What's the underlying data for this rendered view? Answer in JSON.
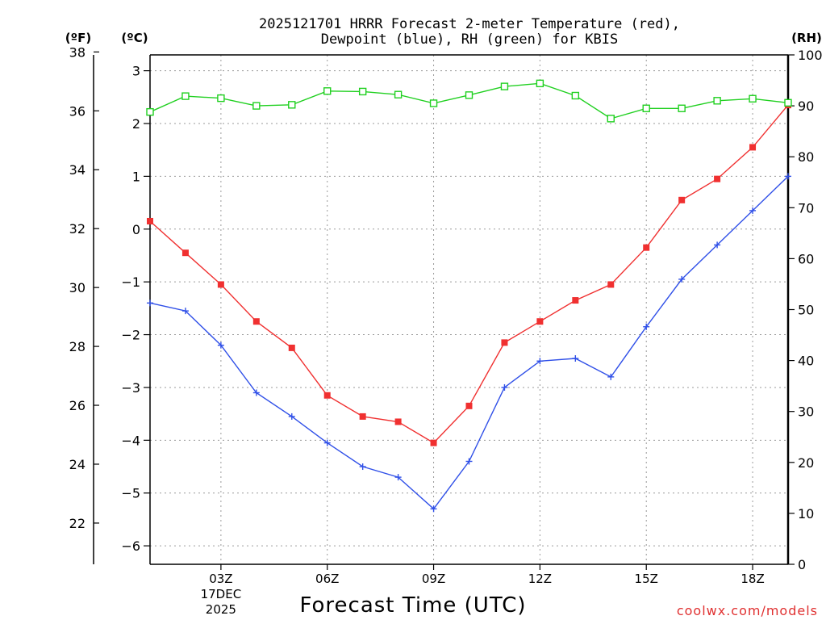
{
  "chart_data": {
    "type": "line",
    "title_line1": "2025121701 HRRR Forecast 2-meter Temperature (red),",
    "title_line2": "Dewpoint (blue), RH (green) for KBIS",
    "xlabel": "Forecast Time (UTC)",
    "credit": "coolwx.com/models",
    "unit_left_f": "(ºF)",
    "unit_left_c": "(ºC)",
    "unit_right": "(RH)",
    "x_hours": [
      1,
      2,
      3,
      4,
      5,
      6,
      7,
      8,
      9,
      10,
      11,
      12,
      13,
      14,
      15,
      16,
      17,
      18,
      19
    ],
    "xlim": [
      1,
      19
    ],
    "x_ticks": [
      {
        "hour": 3,
        "label": "03Z",
        "sub1": "17DEC",
        "sub2": "2025"
      },
      {
        "hour": 6,
        "label": "06Z"
      },
      {
        "hour": 9,
        "label": "09Z"
      },
      {
        "hour": 12,
        "label": "12Z"
      },
      {
        "hour": 15,
        "label": "15Z"
      },
      {
        "hour": 18,
        "label": "18Z"
      }
    ],
    "celsius_axis": {
      "range": [
        -6.35,
        3.3
      ],
      "ticks": [
        3,
        2,
        1,
        0,
        -1,
        -2,
        -3,
        -4,
        -5,
        -6
      ]
    },
    "fahrenheit_axis": {
      "range": [
        20.6,
        37.9
      ],
      "ticks": [
        38,
        36,
        34,
        32,
        30,
        28,
        26,
        24,
        22
      ]
    },
    "rh_axis": {
      "range": [
        0,
        100
      ],
      "ticks": [
        100,
        90,
        80,
        70,
        60,
        50,
        40,
        30,
        20,
        10,
        0
      ]
    },
    "series": [
      {
        "name": "Temperature",
        "color": "#f03030",
        "marker": "filled-square",
        "axis": "celsius",
        "values": [
          0.15,
          -0.45,
          -1.05,
          -1.75,
          -2.25,
          -3.15,
          -3.55,
          -3.65,
          -4.05,
          -3.35,
          -2.15,
          -1.75,
          -1.35,
          -1.05,
          -0.35,
          0.55,
          0.95,
          1.55,
          2.35
        ]
      },
      {
        "name": "Dewpoint",
        "color": "#3050e8",
        "marker": "plus",
        "axis": "celsius",
        "values": [
          -1.4,
          -1.55,
          -2.2,
          -3.1,
          -3.55,
          -4.05,
          -4.5,
          -4.7,
          -5.3,
          -4.4,
          -3.0,
          -2.5,
          -2.45,
          -2.8,
          -1.85,
          -0.95,
          -0.3,
          0.35,
          1.0
        ]
      },
      {
        "name": "RH",
        "color": "#20d020",
        "marker": "open-square",
        "axis": "rh",
        "values": [
          88.8,
          91.9,
          91.5,
          90.0,
          90.2,
          92.9,
          92.8,
          92.2,
          90.5,
          92.1,
          93.8,
          94.4,
          92.0,
          87.5,
          89.5,
          89.5,
          91.0,
          91.4,
          90.6
        ]
      }
    ]
  }
}
